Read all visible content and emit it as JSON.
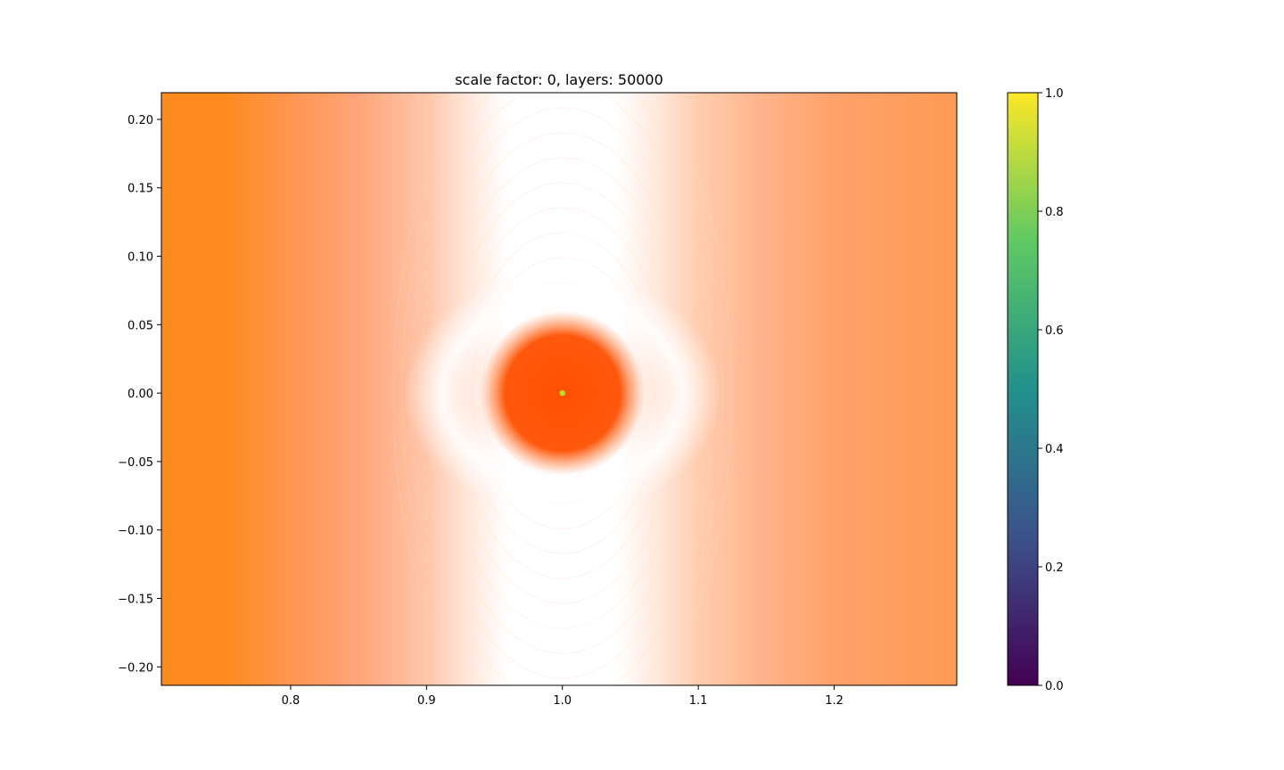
{
  "chart_data": {
    "type": "heatmap",
    "title": "scale factor: 0, layers: 50000",
    "xlabel": "",
    "ylabel": "",
    "xlim": [
      0.7049,
      1.2902
    ],
    "ylim": [
      -0.2135,
      0.2195
    ],
    "x_ticks": [
      0.8,
      0.9,
      1.0,
      1.1,
      1.2
    ],
    "x_tick_labels": [
      "0.8",
      "0.9",
      "1.0",
      "1.1",
      "1.2"
    ],
    "y_ticks": [
      0.2,
      0.15,
      0.1,
      0.05,
      0.0,
      -0.05,
      -0.1,
      -0.15,
      -0.2
    ],
    "y_tick_labels": [
      "0.20",
      "0.15",
      "0.10",
      "0.05",
      "0.00",
      "−0.05",
      "−0.10",
      "−0.15",
      "−0.20"
    ],
    "field": {
      "center": [
        1.0,
        0.0
      ],
      "core_radius": 0.045,
      "center_point_color": "#b5e21b",
      "profile_x": [
        0.705,
        0.75,
        0.8,
        0.85,
        0.9,
        0.93,
        0.96,
        1.0,
        1.04,
        1.07,
        1.1,
        1.15,
        1.2,
        1.29
      ],
      "colors": {
        "edge_left": "#ff8a1e",
        "edge_right": "#ff9a55",
        "mid": "#ffb08a",
        "white": "#ffffff",
        "core": "#ff5000",
        "core_outer": "#ff7f3a"
      }
    },
    "grid": false,
    "colorbar": {
      "colormap": "viridis",
      "range": [
        0.0,
        1.0
      ],
      "ticks": [
        0.0,
        0.2,
        0.4,
        0.6,
        0.8,
        1.0
      ],
      "tick_labels": [
        "0.0",
        "0.2",
        "0.4",
        "0.6",
        "0.8",
        "1.0"
      ],
      "colors": [
        "#440154",
        "#3b528b",
        "#21918c",
        "#5ec962",
        "#fde725"
      ]
    }
  }
}
